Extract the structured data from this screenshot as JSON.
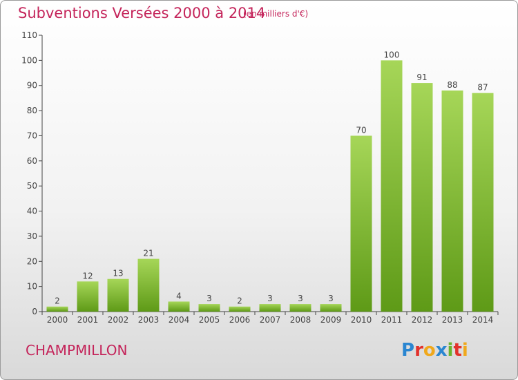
{
  "title": "Subventions Versées 2000 à 2014",
  "subtitle": "(en milliers d'€)",
  "commune": "CHAMPMILLON",
  "logo_text": "Proxiti",
  "colors": {
    "title": "#c4245a",
    "bar_light": "#a6d658",
    "bar_dark": "#5e9a17",
    "axis": "#444444"
  },
  "chart_data": {
    "type": "bar",
    "categories": [
      "2000",
      "2001",
      "2002",
      "2003",
      "2004",
      "2005",
      "2006",
      "2007",
      "2008",
      "2009",
      "2010",
      "2011",
      "2012",
      "2013",
      "2014"
    ],
    "values": [
      2,
      12,
      13,
      21,
      4,
      3,
      2,
      3,
      3,
      3,
      70,
      100,
      91,
      88,
      87
    ],
    "ylim": [
      0,
      110
    ],
    "yticks": [
      0,
      10,
      20,
      30,
      40,
      50,
      60,
      70,
      80,
      90,
      100,
      110
    ],
    "grid": false,
    "data_labels": true
  }
}
